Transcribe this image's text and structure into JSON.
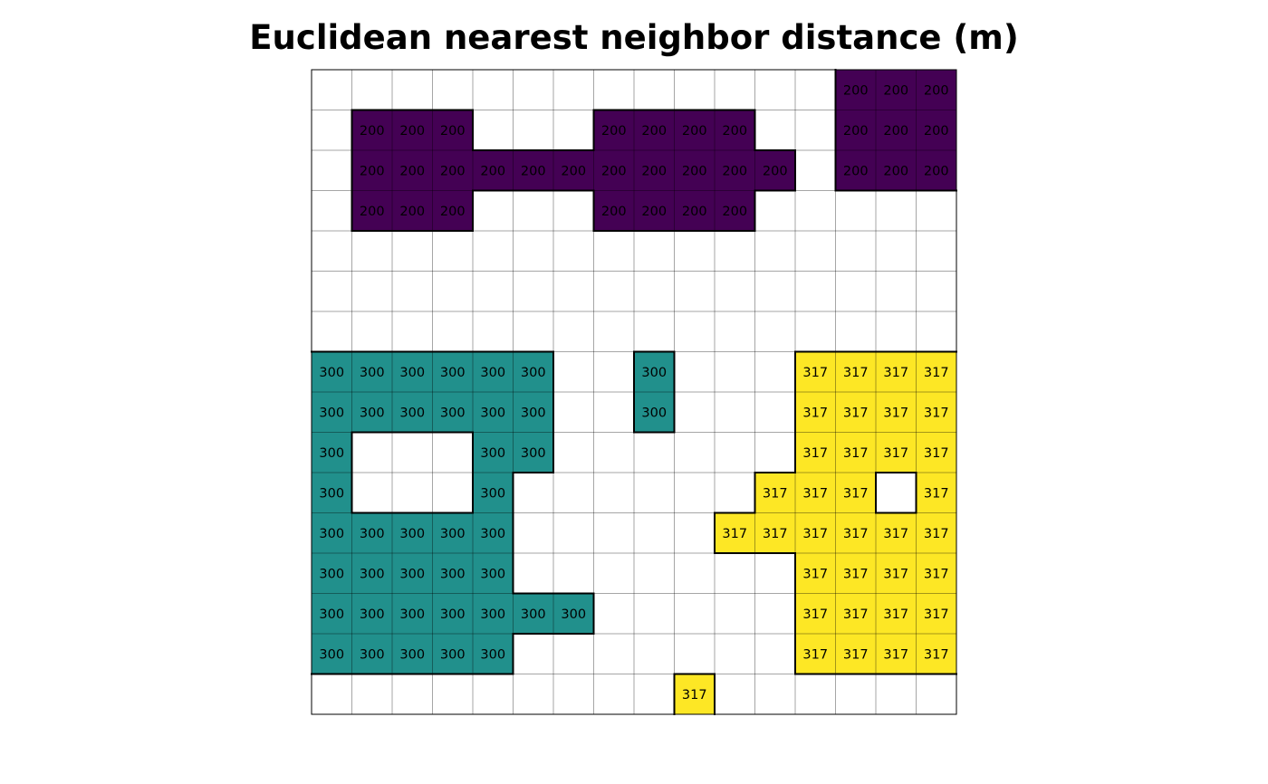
{
  "chart_data": {
    "type": "heatmap",
    "title": "Euclidean nearest neighbor distance (m)",
    "rows": 16,
    "cols": 16,
    "grid_lines": true,
    "colors": {
      "200": "#440154",
      "300": "#21908C",
      "317": "#FDE725",
      "empty": "#ffffff"
    },
    "values": [
      [
        null,
        null,
        null,
        null,
        null,
        null,
        null,
        null,
        null,
        null,
        null,
        null,
        null,
        200,
        200,
        200
      ],
      [
        null,
        200,
        200,
        200,
        null,
        null,
        null,
        200,
        200,
        200,
        200,
        null,
        null,
        200,
        200,
        200
      ],
      [
        null,
        200,
        200,
        200,
        200,
        200,
        200,
        200,
        200,
        200,
        200,
        200,
        null,
        200,
        200,
        200
      ],
      [
        null,
        200,
        200,
        200,
        null,
        null,
        null,
        200,
        200,
        200,
        200,
        null,
        null,
        null,
        null,
        null
      ],
      [
        null,
        null,
        null,
        null,
        null,
        null,
        null,
        null,
        null,
        null,
        null,
        null,
        null,
        null,
        null,
        null
      ],
      [
        null,
        null,
        null,
        null,
        null,
        null,
        null,
        null,
        null,
        null,
        null,
        null,
        null,
        null,
        null,
        null
      ],
      [
        null,
        null,
        null,
        null,
        null,
        null,
        null,
        null,
        null,
        null,
        null,
        null,
        null,
        null,
        null,
        null
      ],
      [
        300,
        300,
        300,
        300,
        300,
        300,
        null,
        null,
        300,
        null,
        null,
        null,
        317,
        317,
        317,
        317
      ],
      [
        300,
        300,
        300,
        300,
        300,
        300,
        null,
        null,
        300,
        null,
        null,
        null,
        317,
        317,
        317,
        317
      ],
      [
        300,
        null,
        null,
        null,
        300,
        300,
        null,
        null,
        null,
        null,
        null,
        null,
        317,
        317,
        317,
        317
      ],
      [
        300,
        null,
        null,
        null,
        300,
        null,
        null,
        null,
        null,
        null,
        null,
        317,
        317,
        317,
        null,
        317
      ],
      [
        300,
        300,
        300,
        300,
        300,
        null,
        null,
        null,
        null,
        null,
        317,
        317,
        317,
        317,
        317,
        317
      ],
      [
        300,
        300,
        300,
        300,
        300,
        null,
        null,
        null,
        null,
        null,
        null,
        null,
        317,
        317,
        317,
        317
      ],
      [
        300,
        300,
        300,
        300,
        300,
        300,
        300,
        null,
        null,
        null,
        null,
        null,
        317,
        317,
        317,
        317
      ],
      [
        300,
        300,
        300,
        300,
        300,
        null,
        null,
        null,
        null,
        null,
        null,
        null,
        317,
        317,
        317,
        317
      ],
      [
        null,
        null,
        null,
        null,
        null,
        null,
        null,
        null,
        null,
        317,
        null,
        null,
        null,
        null,
        null,
        null
      ]
    ]
  }
}
